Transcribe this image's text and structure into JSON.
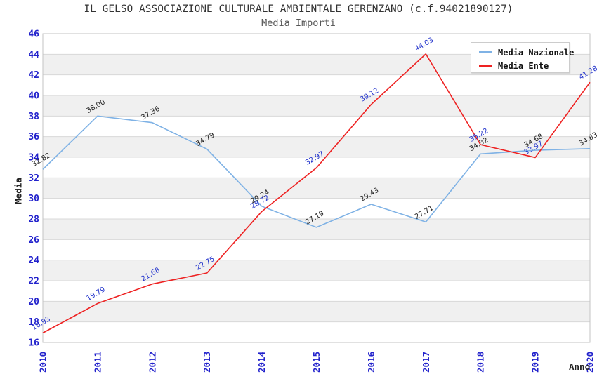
{
  "title": "IL GELSO ASSOCIAZIONE CULTURALE AMBIENTALE GERENZANO (c.f.94021890127)",
  "subtitle": "Media Importi",
  "chart_data": {
    "type": "line",
    "x": [
      2010,
      2011,
      2012,
      2013,
      2014,
      2015,
      2016,
      2017,
      2018,
      2019,
      2020
    ],
    "xlabel": "Anno",
    "ylabel": "Media",
    "ylim": [
      16,
      46
    ],
    "ytick_step": 2,
    "grid": true,
    "banded_background": true,
    "legend_position": "top-right",
    "series": [
      {
        "name": "Media Nazionale",
        "color": "#7fb2e5",
        "label_color": "#222222",
        "values": [
          32.82,
          38.0,
          37.36,
          34.79,
          29.24,
          27.19,
          29.43,
          27.71,
          34.32,
          34.68,
          34.83
        ]
      },
      {
        "name": "Media Ente",
        "color": "#ee2222",
        "label_color": "#2233cc",
        "values": [
          16.93,
          19.79,
          21.68,
          22.75,
          28.72,
          32.97,
          39.12,
          44.03,
          35.22,
          33.97,
          41.28
        ]
      }
    ]
  },
  "colors": {
    "tick_label": "#2222cc",
    "grid_line": "#d8d8d8",
    "plot_border": "#c3c3c3",
    "band_fill": "#f0f0f0",
    "background": "#ffffff"
  }
}
